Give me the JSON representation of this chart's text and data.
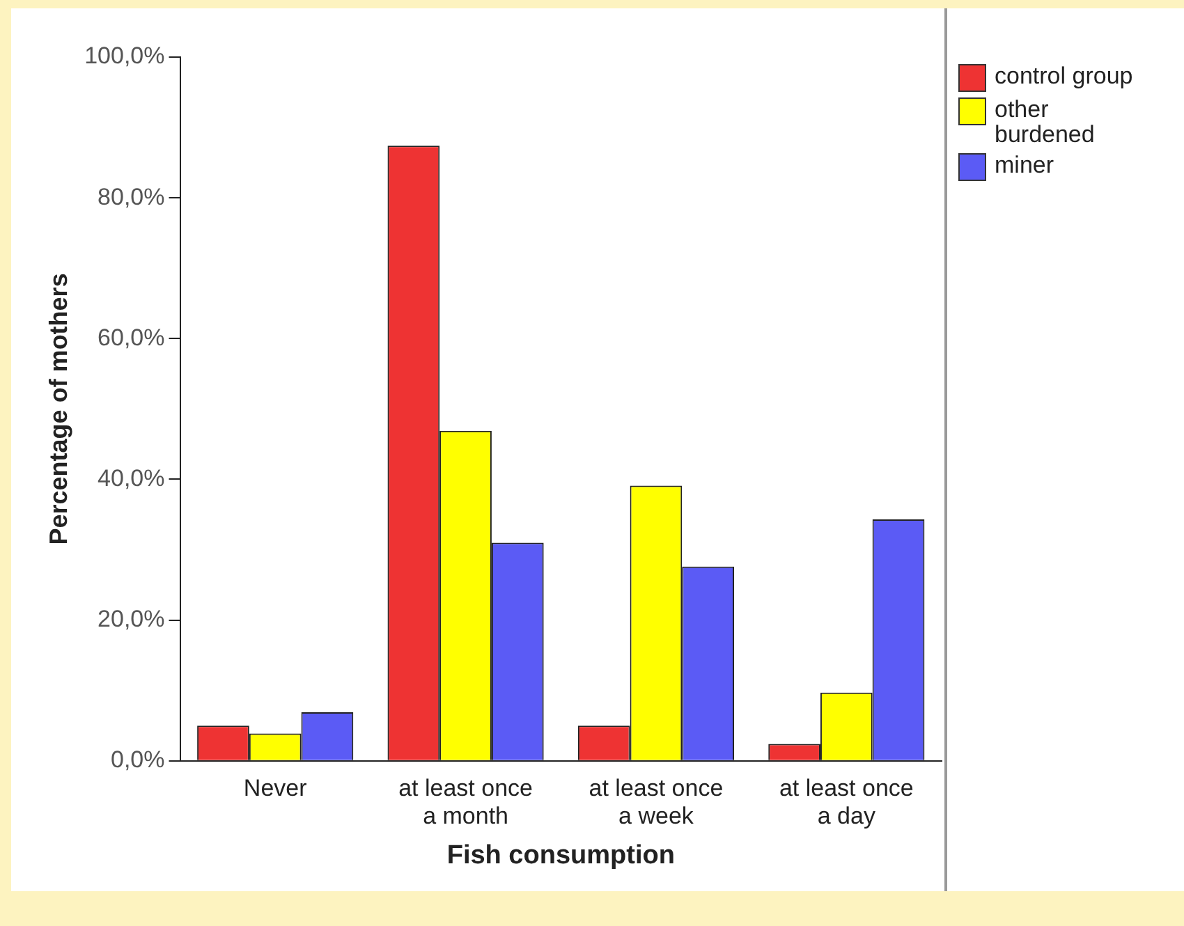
{
  "chart_data": {
    "type": "bar",
    "xlabel": "Fish consumption",
    "ylabel": "Percentage of mothers",
    "categories": [
      "Never",
      "at least once a month",
      "at least once a week",
      "at least once a day"
    ],
    "series": [
      {
        "name": "control group",
        "color": "#ee3333",
        "values": [
          5.0,
          87.4,
          5.0,
          2.4
        ]
      },
      {
        "name": "other burdened",
        "color": "#ffff00",
        "values": [
          3.9,
          46.9,
          39.1,
          9.7
        ]
      },
      {
        "name": "miner",
        "color": "#5b5bf5",
        "values": [
          6.9,
          31.0,
          27.6,
          34.3
        ]
      }
    ],
    "ylim": [
      0,
      100
    ],
    "yticks": [
      {
        "value": 0,
        "label": "0,0%"
      },
      {
        "value": 20,
        "label": "20,0%"
      },
      {
        "value": 40,
        "label": "40,0%"
      },
      {
        "value": 60,
        "label": "60,0%"
      },
      {
        "value": 80,
        "label": "80,0%"
      },
      {
        "value": 100,
        "label": "100,0%"
      }
    ],
    "grid": false,
    "legend": "right"
  }
}
